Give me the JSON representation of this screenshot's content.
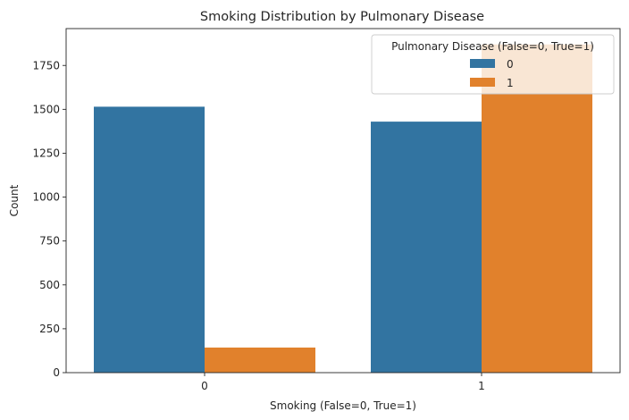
{
  "chart_data": {
    "type": "bar",
    "title": "Smoking Distribution by Pulmonary Disease",
    "xlabel": "Smoking (False=0, True=1)",
    "ylabel": "Count",
    "categories": [
      "0",
      "1"
    ],
    "series": [
      {
        "name": "0",
        "values": [
          1515,
          1430
        ],
        "color": "#3274a1"
      },
      {
        "name": "1",
        "values": [
          143,
          1870
        ],
        "color": "#e1812c"
      }
    ],
    "ylim": [
      0,
      1960
    ],
    "yticks": [
      0,
      250,
      500,
      750,
      1000,
      1250,
      1500,
      1750
    ],
    "grid": false,
    "legend": {
      "title": "Pulmonary Disease (False=0, True=1)",
      "placement": "top-right"
    }
  }
}
